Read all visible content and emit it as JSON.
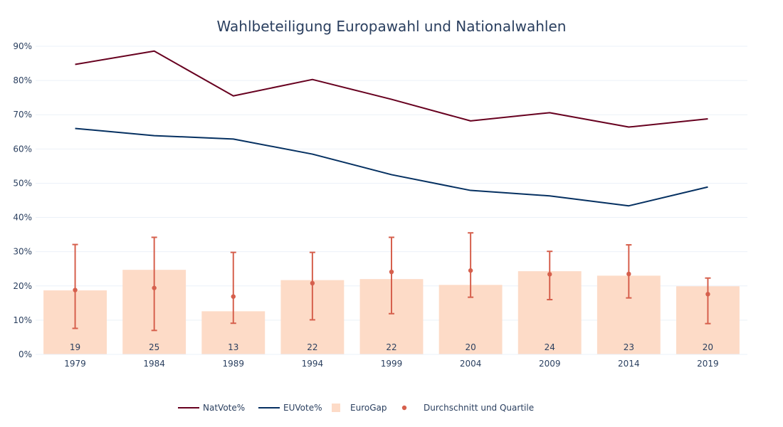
{
  "chart_data": {
    "type": "bar",
    "title": "Wahlbeteiligung Europawahl und Nationalwahlen",
    "xlabel": "",
    "ylabel": "",
    "ylim": [
      0,
      90
    ],
    "y_tick_values": [
      0,
      10,
      20,
      30,
      40,
      50,
      60,
      70,
      80,
      90
    ],
    "y_tick_labels": [
      "0%",
      "10%",
      "20%",
      "30%",
      "40%",
      "50%",
      "60%",
      "70%",
      "80%",
      "90%"
    ],
    "categories": [
      "1979",
      "1984",
      "1989",
      "1994",
      "1999",
      "2004",
      "2009",
      "2014",
      "2019"
    ],
    "grid": true,
    "legend_position": "bottom",
    "series": [
      {
        "name": "NatVote%",
        "kind": "line",
        "color": "#67001f",
        "values": [
          84.7,
          88.6,
          75.5,
          80.3,
          74.5,
          68.2,
          70.6,
          66.4,
          68.8
        ]
      },
      {
        "name": "EUVote%",
        "kind": "line",
        "color": "#053061",
        "values": [
          66.0,
          63.9,
          62.9,
          58.5,
          52.5,
          47.9,
          46.3,
          43.4,
          48.9
        ]
      },
      {
        "name": "EuroGap",
        "kind": "bar",
        "color": "#fddbc7",
        "values": [
          18.7,
          24.7,
          12.6,
          21.7,
          22.0,
          20.3,
          24.3,
          23.0,
          19.9
        ],
        "labels": [
          "19",
          "25",
          "13",
          "22",
          "22",
          "20",
          "24",
          "23",
          "20"
        ]
      },
      {
        "name": "Durchschnitt und Quartile",
        "kind": "errorbar",
        "color": "#d6604d",
        "values": [
          18.8,
          19.4,
          16.9,
          20.8,
          24.1,
          24.5,
          23.4,
          23.5,
          17.6
        ],
        "lower": [
          7.6,
          7.0,
          9.1,
          10.1,
          11.9,
          16.7,
          16.0,
          16.5,
          9.0
        ],
        "upper": [
          32.1,
          34.2,
          29.8,
          29.8,
          34.2,
          35.5,
          30.1,
          32.0,
          22.3
        ]
      }
    ]
  }
}
